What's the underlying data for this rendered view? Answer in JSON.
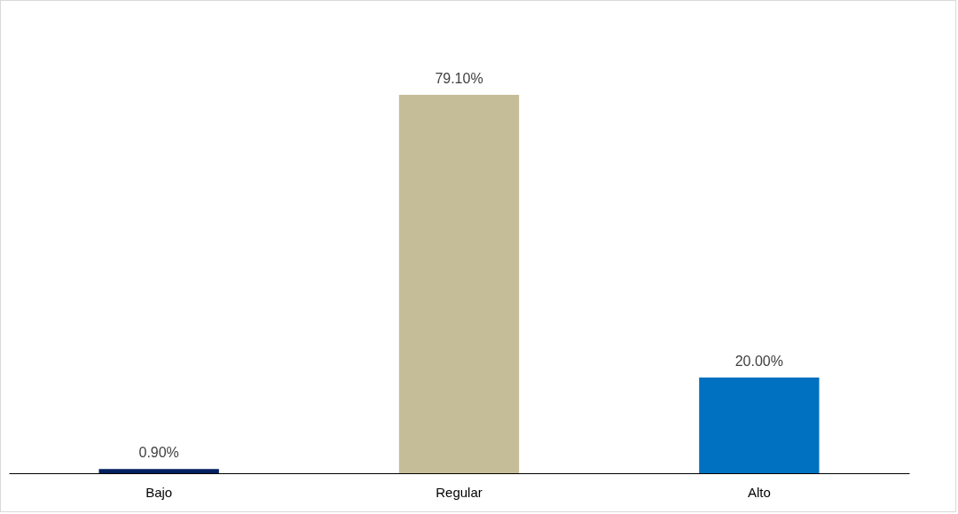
{
  "chart_data": {
    "type": "bar",
    "categories": [
      "Bajo",
      "Regular",
      "Alto"
    ],
    "values": [
      0.9,
      79.1,
      20.0
    ],
    "colors": [
      "#002060",
      "#c4bd97",
      "#0070c0"
    ],
    "value_labels": [
      "0.90%",
      "79.10%",
      "20.00%"
    ]
  }
}
